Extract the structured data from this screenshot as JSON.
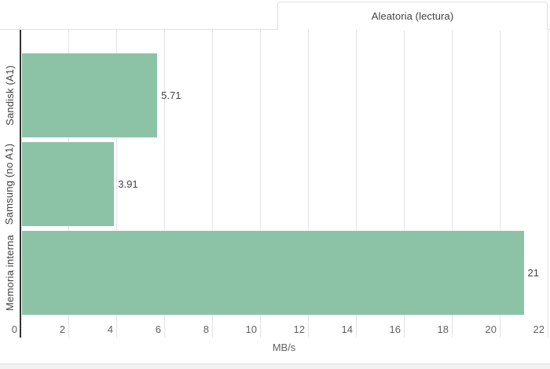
{
  "chart_data": {
    "type": "bar",
    "orientation": "horizontal",
    "legend": "Aleatoria (lectura)",
    "legend_position": "top-right",
    "categories": [
      "Sandisk (A1)",
      "Samsung (no A1)",
      "Memoria interna"
    ],
    "values": [
      5.71,
      3.91,
      21
    ],
    "value_labels": [
      "5.71",
      "3.91",
      "21"
    ],
    "xlabel": "MB/s",
    "xlim": [
      0,
      22
    ],
    "xticks": [
      0,
      2,
      4,
      6,
      8,
      10,
      12,
      14,
      16,
      18,
      20,
      22
    ],
    "grid": true,
    "colors": {
      "bar": "#8cc3a7",
      "gridline": "#e3e3e3",
      "axis_line": "#333333",
      "tick_text": "#616161",
      "label_text": "#424242",
      "border": "#e0e0e0",
      "bottom_strip": "#f2f2f2",
      "bottom_strip_border": "#dcdcdc"
    }
  }
}
